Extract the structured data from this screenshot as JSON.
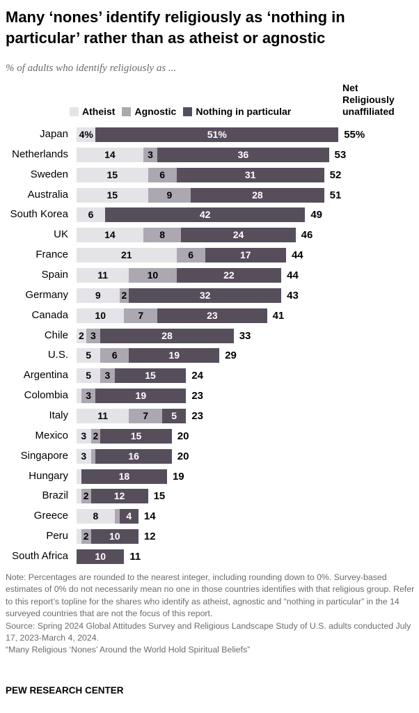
{
  "title": "Many ‘nones’ identify religiously as ‘nothing in particular’ rather than as atheist or agnostic",
  "subtitle": "% of adults who identify religiously as ...",
  "chart_data": {
    "type": "bar",
    "orientation": "horizontal",
    "stacked": true,
    "legend": [
      "Atheist",
      "Agnostic",
      "Nothing in particular"
    ],
    "legend_placement": "top",
    "net_header": "Net Religiously unaffiliated",
    "colors": {
      "Atheist": "#e4e3e8",
      "Agnostic": "#aca7b0",
      "Nothing in particular": "#574e5c"
    },
    "categories": [
      "Japan",
      "Netherlands",
      "Sweden",
      "Australia",
      "South Korea",
      "UK",
      "France",
      "Spain",
      "Germany",
      "Canada",
      "Chile",
      "U.S.",
      "Argentina",
      "Colombia",
      "Italy",
      "Mexico",
      "Singapore",
      "Hungary",
      "Brazil",
      "Greece",
      "Peru",
      "South Africa"
    ],
    "series": [
      {
        "name": "Atheist",
        "values": [
          4,
          14,
          15,
          15,
          6,
          14,
          21,
          11,
          9,
          10,
          2,
          5,
          5,
          1,
          11,
          3,
          3,
          1,
          1,
          8,
          1,
          0
        ],
        "labels": [
          "4%",
          "14",
          "15",
          "15",
          "6",
          "14",
          "21",
          "11",
          "9",
          "10",
          "2",
          "5",
          "5",
          "",
          "11",
          "3",
          "3",
          "",
          "",
          "8",
          "",
          ""
        ]
      },
      {
        "name": "Agnostic",
        "values": [
          0,
          3,
          6,
          9,
          0,
          8,
          6,
          10,
          2,
          7,
          3,
          6,
          3,
          3,
          7,
          2,
          1,
          0,
          2,
          1,
          2,
          0
        ],
        "labels": [
          "",
          "3",
          "6",
          "9",
          "",
          "8",
          "6",
          "10",
          "2",
          "7",
          "3",
          "6",
          "3",
          "3",
          "7",
          "2",
          "",
          "",
          "2",
          "",
          "2",
          ""
        ]
      },
      {
        "name": "Nothing in particular",
        "values": [
          51,
          36,
          31,
          28,
          42,
          24,
          17,
          22,
          32,
          23,
          28,
          19,
          15,
          19,
          5,
          15,
          16,
          18,
          12,
          4,
          10,
          10
        ],
        "labels": [
          "51%",
          "36",
          "31",
          "28",
          "42",
          "24",
          "17",
          "22",
          "32",
          "23",
          "28",
          "19",
          "15",
          "19",
          "5",
          "15",
          "16",
          "18",
          "12",
          "4",
          "10",
          "10"
        ]
      }
    ],
    "net": [
      "55%",
      "53",
      "52",
      "51",
      "49",
      "46",
      "44",
      "44",
      "43",
      "41",
      "33",
      "29",
      "24",
      "23",
      "23",
      "20",
      "20",
      "19",
      "15",
      "14",
      "12",
      "11"
    ]
  },
  "notes": [
    "Note: Percentages are rounded to the nearest integer, including rounding down to 0%. Survey-based estimates of 0% do not necessarily mean no one in those countries identifies with that religious group. Refer to this report’s topline for the shares who identify as atheist, agnostic and “nothing in particular” in the 14 surveyed countries that are not the focus of this report.",
    "Source: Spring 2024 Global Attitudes Survey and Religious Landscape Study of U.S. adults conducted July 17, 2023-March 4, 2024.",
    "“Many Religious ‘Nones’ Around the World Hold Spiritual Beliefs”"
  ],
  "brand": "PEW RESEARCH CENTER"
}
